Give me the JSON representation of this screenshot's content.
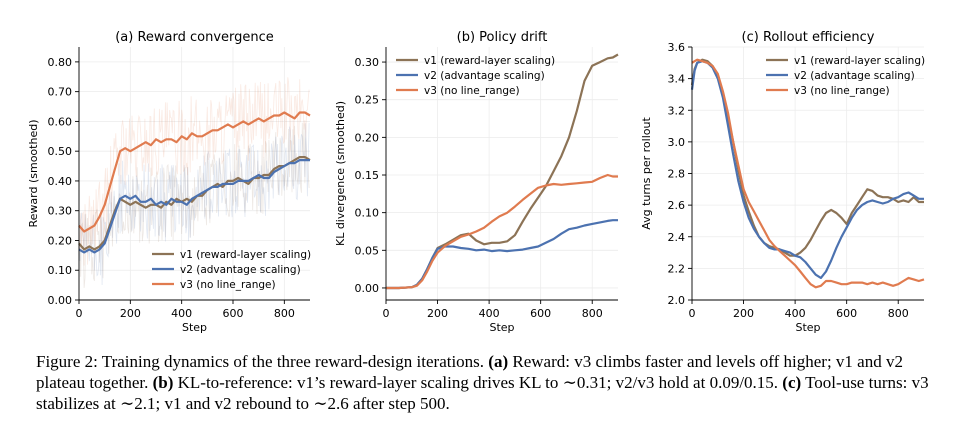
{
  "caption": {
    "label": "Figure 2:",
    "intro": " Training dynamics of the three reward-design iterations. ",
    "a_tag": "(a)",
    "a_text": " Reward: v3 climbs faster and levels off higher; v1 and v2 plateau together. ",
    "b_tag": "(b)",
    "b_text": " KL-to-reference: v1’s reward-layer scaling drives KL to ∼0.31; v2/v3 hold at 0.09/0.15. ",
    "c_tag": "(c)",
    "c_text": " Tool-use turns: v3 stabilizes at ∼2.1; v1 and v2 rebound to ∼2.6 after step 500."
  },
  "colors": {
    "v1": "#8c7356",
    "v2": "#4c72b0",
    "v3": "#e07b4f"
  },
  "chart_data": [
    {
      "type": "line",
      "title": "(a) Reward convergence",
      "xlabel": "Step",
      "ylabel": "Reward (smoothed)",
      "xlim": [
        0,
        900
      ],
      "ylim": [
        0,
        0.85
      ],
      "xticks": [
        0,
        200,
        400,
        600,
        800
      ],
      "yticks": [
        0.0,
        0.1,
        0.2,
        0.3,
        0.4,
        0.5,
        0.6,
        0.7,
        0.8
      ],
      "ytick_labels": [
        "0.00",
        "0.10",
        "0.20",
        "0.30",
        "0.40",
        "0.50",
        "0.60",
        "0.70",
        "0.80"
      ],
      "grid": true,
      "legend": "lower-right",
      "raw_band": true,
      "series": [
        {
          "name": "v1 (reward-layer scaling)",
          "key": "v1",
          "x": [
            0,
            20,
            40,
            60,
            80,
            100,
            120,
            140,
            160,
            180,
            200,
            220,
            240,
            260,
            280,
            300,
            320,
            340,
            360,
            380,
            400,
            420,
            440,
            460,
            480,
            500,
            520,
            540,
            560,
            580,
            600,
            620,
            640,
            660,
            680,
            700,
            720,
            740,
            760,
            780,
            800,
            820,
            840,
            860,
            880,
            900
          ],
          "y": [
            0.19,
            0.17,
            0.18,
            0.17,
            0.18,
            0.2,
            0.25,
            0.3,
            0.34,
            0.33,
            0.32,
            0.33,
            0.32,
            0.31,
            0.32,
            0.32,
            0.31,
            0.33,
            0.32,
            0.34,
            0.33,
            0.34,
            0.33,
            0.35,
            0.35,
            0.37,
            0.38,
            0.39,
            0.38,
            0.4,
            0.4,
            0.41,
            0.4,
            0.39,
            0.41,
            0.41,
            0.42,
            0.42,
            0.44,
            0.45,
            0.45,
            0.46,
            0.47,
            0.48,
            0.48,
            0.47
          ]
        },
        {
          "name": "v2 (advantage scaling)",
          "key": "v2",
          "x": [
            0,
            20,
            40,
            60,
            80,
            100,
            120,
            140,
            160,
            180,
            200,
            220,
            240,
            260,
            280,
            300,
            320,
            340,
            360,
            380,
            400,
            420,
            440,
            460,
            480,
            500,
            520,
            540,
            560,
            580,
            600,
            620,
            640,
            660,
            680,
            700,
            720,
            740,
            760,
            780,
            800,
            820,
            840,
            860,
            880,
            900
          ],
          "y": [
            0.17,
            0.16,
            0.17,
            0.16,
            0.17,
            0.19,
            0.24,
            0.29,
            0.34,
            0.35,
            0.34,
            0.35,
            0.33,
            0.33,
            0.34,
            0.32,
            0.33,
            0.32,
            0.34,
            0.33,
            0.33,
            0.32,
            0.34,
            0.35,
            0.36,
            0.37,
            0.38,
            0.38,
            0.39,
            0.39,
            0.39,
            0.4,
            0.4,
            0.4,
            0.41,
            0.42,
            0.41,
            0.41,
            0.43,
            0.44,
            0.45,
            0.46,
            0.46,
            0.47,
            0.47,
            0.47
          ]
        },
        {
          "name": "v3 (no line_range)",
          "key": "v3",
          "x": [
            0,
            20,
            40,
            60,
            80,
            100,
            120,
            140,
            160,
            180,
            200,
            220,
            240,
            260,
            280,
            300,
            320,
            340,
            360,
            380,
            400,
            420,
            440,
            460,
            480,
            500,
            520,
            540,
            560,
            580,
            600,
            620,
            640,
            660,
            680,
            700,
            720,
            740,
            760,
            780,
            800,
            820,
            840,
            860,
            880,
            900
          ],
          "y": [
            0.25,
            0.23,
            0.24,
            0.25,
            0.28,
            0.32,
            0.38,
            0.44,
            0.5,
            0.51,
            0.5,
            0.51,
            0.52,
            0.53,
            0.52,
            0.54,
            0.53,
            0.54,
            0.54,
            0.53,
            0.55,
            0.54,
            0.56,
            0.55,
            0.55,
            0.56,
            0.57,
            0.57,
            0.58,
            0.59,
            0.58,
            0.59,
            0.6,
            0.59,
            0.6,
            0.61,
            0.6,
            0.61,
            0.62,
            0.62,
            0.63,
            0.62,
            0.61,
            0.63,
            0.63,
            0.62
          ]
        }
      ]
    },
    {
      "type": "line",
      "title": "(b) Policy drift",
      "xlabel": "Step",
      "ylabel": "KL divergence (smoothed)",
      "xlim": [
        0,
        900
      ],
      "ylim": [
        -0.016,
        0.32
      ],
      "xticks": [
        0,
        200,
        400,
        600,
        800
      ],
      "yticks": [
        0.0,
        0.05,
        0.1,
        0.15,
        0.2,
        0.25,
        0.3
      ],
      "ytick_labels": [
        "0.00",
        "0.05",
        "0.10",
        "0.15",
        "0.20",
        "0.25",
        "0.30"
      ],
      "grid": true,
      "legend": "top-left",
      "raw_band": false,
      "series": [
        {
          "name": "v1 (reward-layer scaling)",
          "key": "v1",
          "x": [
            0,
            50,
            100,
            120,
            140,
            160,
            180,
            200,
            230,
            260,
            290,
            320,
            350,
            380,
            410,
            440,
            470,
            500,
            530,
            560,
            590,
            620,
            650,
            680,
            710,
            740,
            770,
            800,
            830,
            860,
            880,
            900
          ],
          "y": [
            0,
            0,
            0.001,
            0.004,
            0.012,
            0.025,
            0.04,
            0.053,
            0.058,
            0.064,
            0.07,
            0.072,
            0.063,
            0.058,
            0.06,
            0.06,
            0.062,
            0.07,
            0.088,
            0.105,
            0.12,
            0.135,
            0.155,
            0.175,
            0.2,
            0.235,
            0.275,
            0.295,
            0.3,
            0.305,
            0.306,
            0.31
          ]
        },
        {
          "name": "v2 (advantage scaling)",
          "key": "v2",
          "x": [
            0,
            50,
            100,
            120,
            140,
            160,
            180,
            200,
            230,
            260,
            290,
            320,
            350,
            380,
            410,
            440,
            470,
            500,
            530,
            560,
            590,
            620,
            650,
            680,
            710,
            740,
            770,
            800,
            830,
            860,
            880,
            900
          ],
          "y": [
            0,
            0,
            0.001,
            0.004,
            0.012,
            0.025,
            0.04,
            0.052,
            0.055,
            0.055,
            0.053,
            0.052,
            0.05,
            0.051,
            0.049,
            0.05,
            0.049,
            0.05,
            0.051,
            0.053,
            0.055,
            0.06,
            0.065,
            0.072,
            0.078,
            0.08,
            0.083,
            0.085,
            0.087,
            0.089,
            0.09,
            0.09
          ]
        },
        {
          "name": "v3 (no line_range)",
          "key": "v3",
          "x": [
            0,
            50,
            100,
            120,
            140,
            160,
            180,
            200,
            230,
            260,
            290,
            320,
            350,
            380,
            410,
            440,
            470,
            500,
            530,
            560,
            590,
            620,
            650,
            680,
            710,
            740,
            770,
            800,
            830,
            860,
            880,
            900
          ],
          "y": [
            0,
            0,
            0.001,
            0.003,
            0.01,
            0.022,
            0.036,
            0.047,
            0.056,
            0.062,
            0.068,
            0.071,
            0.075,
            0.08,
            0.088,
            0.095,
            0.1,
            0.108,
            0.117,
            0.125,
            0.133,
            0.136,
            0.138,
            0.137,
            0.138,
            0.139,
            0.14,
            0.141,
            0.146,
            0.15,
            0.148,
            0.148
          ]
        }
      ]
    },
    {
      "type": "line",
      "title": "(c) Rollout efficiency",
      "xlabel": "Step",
      "ylabel": "Avg turns per rollout",
      "xlim": [
        0,
        900
      ],
      "ylim": [
        2.0,
        3.6
      ],
      "xticks": [
        0,
        200,
        400,
        600,
        800
      ],
      "yticks": [
        2.0,
        2.2,
        2.4,
        2.6,
        2.8,
        3.0,
        3.2,
        3.4,
        3.6
      ],
      "ytick_labels": [
        "2.0",
        "2.2",
        "2.4",
        "2.6",
        "2.8",
        "3.0",
        "3.2",
        "3.4",
        "3.6"
      ],
      "grid": true,
      "legend": "top-right",
      "raw_band": false,
      "series": [
        {
          "name": "v1 (reward-layer scaling)",
          "key": "v1",
          "x": [
            0,
            10,
            20,
            40,
            60,
            80,
            100,
            120,
            140,
            160,
            180,
            200,
            220,
            240,
            260,
            280,
            300,
            320,
            340,
            360,
            380,
            400,
            420,
            440,
            460,
            480,
            500,
            520,
            540,
            560,
            580,
            600,
            620,
            640,
            660,
            680,
            700,
            720,
            740,
            760,
            780,
            800,
            820,
            840,
            860,
            880,
            900
          ],
          "y": [
            3.36,
            3.46,
            3.5,
            3.52,
            3.51,
            3.48,
            3.42,
            3.3,
            3.15,
            3.0,
            2.82,
            2.66,
            2.56,
            2.47,
            2.4,
            2.36,
            2.34,
            2.33,
            2.32,
            2.3,
            2.28,
            2.28,
            2.3,
            2.33,
            2.38,
            2.44,
            2.5,
            2.55,
            2.57,
            2.55,
            2.52,
            2.48,
            2.55,
            2.6,
            2.65,
            2.7,
            2.69,
            2.66,
            2.65,
            2.65,
            2.64,
            2.62,
            2.63,
            2.62,
            2.65,
            2.62,
            2.62
          ]
        },
        {
          "name": "v2 (advantage scaling)",
          "key": "v2",
          "x": [
            0,
            10,
            20,
            40,
            60,
            80,
            100,
            120,
            140,
            160,
            180,
            200,
            220,
            240,
            260,
            280,
            300,
            320,
            340,
            360,
            380,
            400,
            420,
            440,
            460,
            480,
            500,
            520,
            540,
            560,
            580,
            600,
            620,
            640,
            660,
            680,
            700,
            720,
            740,
            760,
            780,
            800,
            820,
            840,
            860,
            880,
            900
          ],
          "y": [
            3.33,
            3.45,
            3.5,
            3.51,
            3.5,
            3.47,
            3.4,
            3.28,
            3.1,
            2.92,
            2.75,
            2.62,
            2.52,
            2.45,
            2.4,
            2.36,
            2.33,
            2.32,
            2.32,
            2.31,
            2.3,
            2.28,
            2.27,
            2.24,
            2.2,
            2.16,
            2.14,
            2.18,
            2.25,
            2.33,
            2.4,
            2.46,
            2.52,
            2.57,
            2.6,
            2.62,
            2.63,
            2.62,
            2.61,
            2.62,
            2.64,
            2.65,
            2.67,
            2.68,
            2.66,
            2.64,
            2.64
          ]
        },
        {
          "name": "v3 (no line_range)",
          "key": "v3",
          "x": [
            0,
            10,
            20,
            40,
            60,
            80,
            100,
            120,
            140,
            160,
            180,
            200,
            220,
            240,
            260,
            280,
            300,
            320,
            340,
            360,
            380,
            400,
            420,
            440,
            460,
            480,
            500,
            520,
            540,
            560,
            580,
            600,
            620,
            640,
            660,
            680,
            700,
            720,
            740,
            760,
            780,
            800,
            820,
            840,
            860,
            880,
            900
          ],
          "y": [
            3.5,
            3.51,
            3.52,
            3.51,
            3.5,
            3.48,
            3.43,
            3.32,
            3.18,
            3.0,
            2.85,
            2.7,
            2.62,
            2.56,
            2.5,
            2.44,
            2.38,
            2.34,
            2.31,
            2.28,
            2.25,
            2.22,
            2.18,
            2.14,
            2.1,
            2.08,
            2.09,
            2.12,
            2.12,
            2.11,
            2.1,
            2.1,
            2.11,
            2.11,
            2.11,
            2.1,
            2.11,
            2.1,
            2.11,
            2.1,
            2.09,
            2.1,
            2.12,
            2.14,
            2.13,
            2.12,
            2.13
          ]
        }
      ]
    }
  ]
}
